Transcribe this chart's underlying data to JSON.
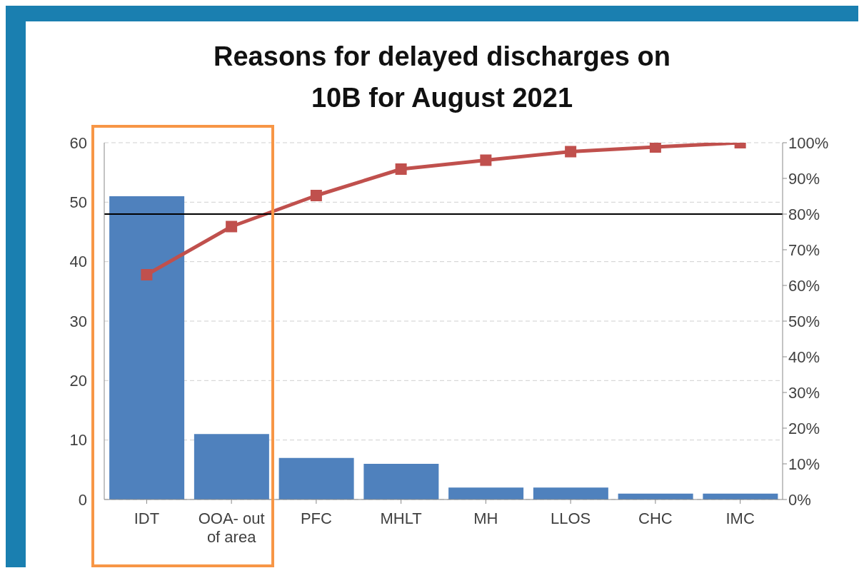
{
  "chart_data": {
    "type": "bar",
    "title": "Reasons for delayed discharges on 10B for August 2021",
    "categories": [
      "IDT",
      "OOA- out of area",
      "PFC",
      "MHLT",
      "MH",
      "LLOS",
      "CHC",
      "IMC"
    ],
    "series": [
      {
        "color": "#4f81bd",
        "values": [
          51,
          11,
          7,
          6,
          2,
          2,
          1,
          1
        ]
      },
      {
        "type": "line",
        "axis": "y2",
        "color": "#c0504d",
        "values": [
          63,
          76.5,
          85.2,
          92.6,
          95.1,
          97.5,
          98.8,
          100
        ]
      }
    ],
    "ylim": [
      0,
      60
    ],
    "yticks": [
      0,
      10,
      20,
      30,
      40,
      50,
      60
    ],
    "y2lim": [
      0,
      100
    ],
    "y2ticks": [
      {
        "value": 0,
        "label": "0%"
      },
      {
        "value": 10,
        "label": "10%"
      },
      {
        "value": 20,
        "label": "20%"
      },
      {
        "value": 30,
        "label": "30%"
      },
      {
        "value": 40,
        "label": "40%"
      },
      {
        "value": 50,
        "label": "50%"
      },
      {
        "value": 60,
        "label": "60%"
      },
      {
        "value": 70,
        "label": "70%"
      },
      {
        "value": 80,
        "label": "80%"
      },
      {
        "value": 90,
        "label": "90%"
      },
      {
        "value": 100,
        "label": "100%"
      }
    ],
    "ref_lines": [
      {
        "axis": "y2",
        "value": 80,
        "color": "#000000"
      }
    ],
    "grid": "y",
    "legend": false,
    "marker": "square",
    "line_style": "solid"
  }
}
